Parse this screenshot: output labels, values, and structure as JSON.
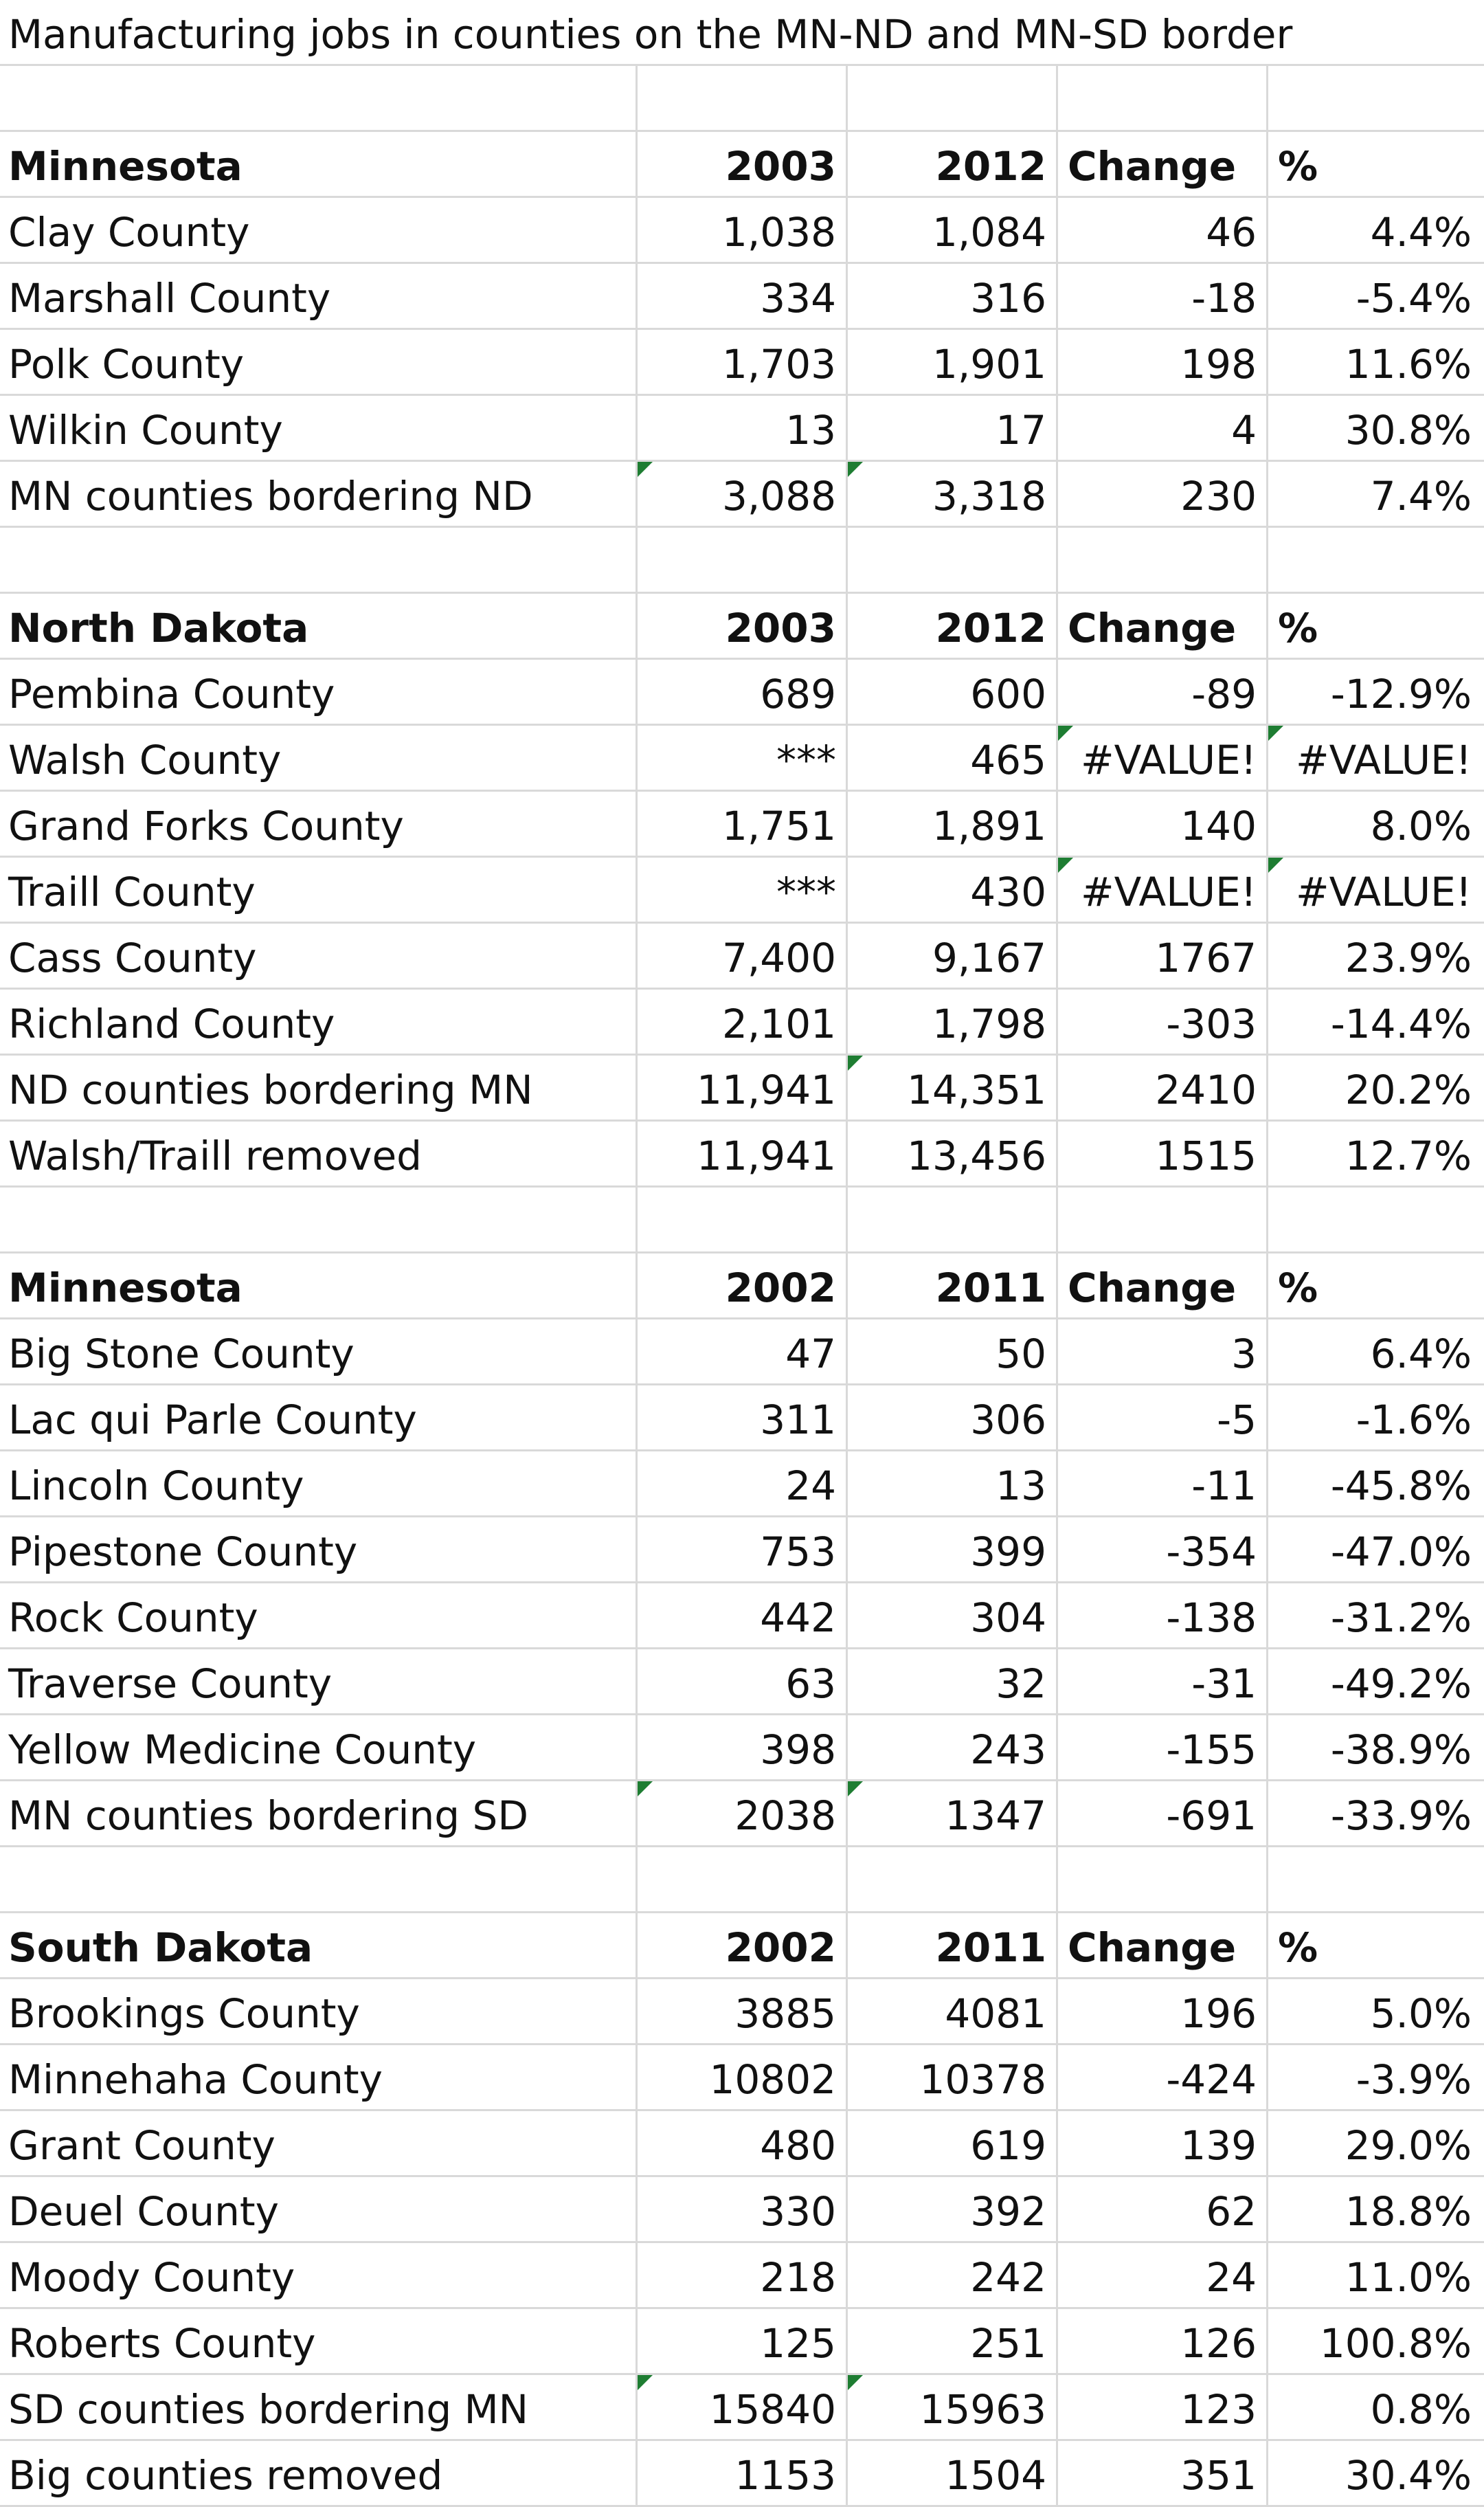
{
  "title": "Manufacturing jobs in counties on the MN-ND and MN-SD border",
  "sections": [
    {
      "header": {
        "name": "Minnesota",
        "y1": "2003",
        "y2": "2012",
        "change": "Change",
        "pct": "%"
      },
      "rows": [
        {
          "county": "Clay County",
          "v1": "1,038",
          "v2": "1,084",
          "change": "46",
          "pct": "4.4%"
        },
        {
          "county": "Marshall County",
          "v1": "334",
          "v2": "316",
          "change": "-18",
          "pct": "-5.4%"
        },
        {
          "county": "Polk County",
          "v1": "1,703",
          "v2": "1,901",
          "change": "198",
          "pct": "11.6%"
        },
        {
          "county": "Wilkin County",
          "v1": "13",
          "v2": "17",
          "change": "4",
          "pct": "30.8%"
        },
        {
          "county": "MN counties bordering ND",
          "v1": "3,088",
          "v2": "3,318",
          "change": "230",
          "pct": "7.4%"
        }
      ]
    },
    {
      "header": {
        "name": "North Dakota",
        "y1": "2003",
        "y2": "2012",
        "change": "Change",
        "pct": "%"
      },
      "rows": [
        {
          "county": "Pembina County",
          "v1": "689",
          "v2": "600",
          "change": "-89",
          "pct": "-12.9%"
        },
        {
          "county": "Walsh County",
          "v1": "***",
          "v2": "465",
          "change": "#VALUE!",
          "pct": "#VALUE!"
        },
        {
          "county": "Grand Forks County",
          "v1": "1,751",
          "v2": "1,891",
          "change": "140",
          "pct": "8.0%"
        },
        {
          "county": "Traill County",
          "v1": "***",
          "v2": "430",
          "change": "#VALUE!",
          "pct": "#VALUE!"
        },
        {
          "county": "Cass County",
          "v1": "7,400",
          "v2": "9,167",
          "change": "1767",
          "pct": "23.9%"
        },
        {
          "county": "Richland County",
          "v1": "2,101",
          "v2": "1,798",
          "change": "-303",
          "pct": "-14.4%"
        },
        {
          "county": "ND counties bordering MN",
          "v1": "11,941",
          "v2": "14,351",
          "change": "2410",
          "pct": "20.2%"
        },
        {
          "county": "Walsh/Traill removed",
          "v1": "11,941",
          "v2": "13,456",
          "change": "1515",
          "pct": "12.7%"
        }
      ]
    },
    {
      "header": {
        "name": "Minnesota",
        "y1": "2002",
        "y2": "2011",
        "change": "Change",
        "pct": "%"
      },
      "rows": [
        {
          "county": "Big Stone County",
          "v1": "47",
          "v2": "50",
          "change": "3",
          "pct": "6.4%"
        },
        {
          "county": "Lac qui Parle County",
          "v1": "311",
          "v2": "306",
          "change": "-5",
          "pct": "-1.6%"
        },
        {
          "county": "Lincoln County",
          "v1": "24",
          "v2": "13",
          "change": "-11",
          "pct": "-45.8%"
        },
        {
          "county": "Pipestone County",
          "v1": "753",
          "v2": "399",
          "change": "-354",
          "pct": "-47.0%"
        },
        {
          "county": "Rock County",
          "v1": "442",
          "v2": "304",
          "change": "-138",
          "pct": "-31.2%"
        },
        {
          "county": "Traverse County",
          "v1": "63",
          "v2": "32",
          "change": "-31",
          "pct": "-49.2%"
        },
        {
          "county": "Yellow Medicine County",
          "v1": "398",
          "v2": "243",
          "change": "-155",
          "pct": "-38.9%"
        },
        {
          "county": "MN counties bordering SD",
          "v1": "2038",
          "v2": "1347",
          "change": "-691",
          "pct": "-33.9%"
        }
      ]
    },
    {
      "header": {
        "name": "South Dakota",
        "y1": "2002",
        "y2": "2011",
        "change": "Change",
        "pct": "%"
      },
      "rows": [
        {
          "county": "Brookings County",
          "v1": "3885",
          "v2": "4081",
          "change": "196",
          "pct": "5.0%"
        },
        {
          "county": "Minnehaha County",
          "v1": "10802",
          "v2": "10378",
          "change": "-424",
          "pct": "-3.9%"
        },
        {
          "county": "Grant County",
          "v1": "480",
          "v2": "619",
          "change": "139",
          "pct": "29.0%"
        },
        {
          "county": "Deuel County",
          "v1": "330",
          "v2": "392",
          "change": "62",
          "pct": "18.8%"
        },
        {
          "county": "Moody County",
          "v1": "218",
          "v2": "242",
          "change": "24",
          "pct": "11.0%"
        },
        {
          "county": "Roberts County",
          "v1": "125",
          "v2": "251",
          "change": "126",
          "pct": "100.8%"
        },
        {
          "county": "SD counties bordering MN",
          "v1": "15840",
          "v2": "15963",
          "change": "123",
          "pct": "0.8%"
        },
        {
          "county": "Big counties removed",
          "v1": "1153",
          "v2": "1504",
          "change": "351",
          "pct": "30.4%"
        }
      ]
    }
  ]
}
